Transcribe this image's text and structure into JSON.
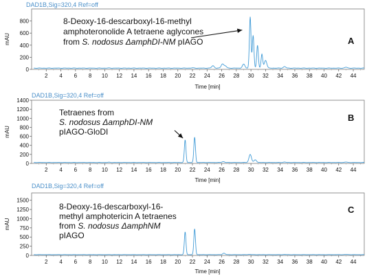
{
  "chart_data": [
    {
      "type": "line",
      "panel_label": "A",
      "header": "DAD1B,Sig=320,4   Ref=off",
      "ylabel": "mAU",
      "xlabel": "Time [min]",
      "xlim": [
        0,
        45.5
      ],
      "x_ticks": [
        "2",
        "4",
        "6",
        "8",
        "10",
        "12",
        "14",
        "16",
        "18",
        "20",
        "22",
        "24",
        "26",
        "28",
        "30",
        "32",
        "34",
        "36",
        "38",
        "40",
        "42",
        "44"
      ],
      "ylim": [
        0,
        1000
      ],
      "y_ticks": [
        "0",
        "200",
        "400",
        "600",
        "800"
      ],
      "annotation": [
        "8-Deoxy-16-descarboxyl-16-methyl",
        "amphoteronolide A tetraene aglycones",
        "from S. nodosus ΔamphDI-NM pIAGO"
      ],
      "arrow_to": {
        "x": 28.8,
        "y": 650
      },
      "baseline": 20,
      "peaks": [
        {
          "x": 10.6,
          "y": 22
        },
        {
          "x": 22.0,
          "y": 25
        },
        {
          "x": 24.8,
          "y": 60
        },
        {
          "x": 26.1,
          "y": 90
        },
        {
          "x": 26.5,
          "y": 55
        },
        {
          "x": 29.0,
          "y": 85
        },
        {
          "x": 29.9,
          "y": 870
        },
        {
          "x": 30.3,
          "y": 560
        },
        {
          "x": 30.9,
          "y": 400
        },
        {
          "x": 31.5,
          "y": 250
        },
        {
          "x": 32.0,
          "y": 150
        },
        {
          "x": 34.6,
          "y": 45
        },
        {
          "x": 43.0,
          "y": 35
        }
      ]
    },
    {
      "type": "line",
      "panel_label": "B",
      "header": "DAD1B,Sig=320,4   Ref=off",
      "ylabel": "mAU",
      "xlabel": "Time [min]",
      "xlim": [
        0,
        45.5
      ],
      "x_ticks": [
        "2",
        "4",
        "6",
        "8",
        "10",
        "12",
        "14",
        "16",
        "18",
        "20",
        "22",
        "24",
        "26",
        "28",
        "30",
        "32",
        "34",
        "36",
        "38",
        "40",
        "42",
        "44"
      ],
      "ylim": [
        0,
        1400
      ],
      "y_ticks": [
        "0",
        "200",
        "400",
        "600",
        "800",
        "1000",
        "1200",
        "1400"
      ],
      "annotation": [
        "Tetraenes from",
        "S. nodosus ΔamphDI-NM",
        "pIAGO-GloDI"
      ],
      "arrow_to": {
        "x": 20.7,
        "y": 560
      },
      "baseline": 20,
      "peaks": [
        {
          "x": 10.6,
          "y": 25
        },
        {
          "x": 21.0,
          "y": 520
        },
        {
          "x": 22.3,
          "y": 580
        },
        {
          "x": 26.2,
          "y": 40
        },
        {
          "x": 29.9,
          "y": 200
        },
        {
          "x": 30.6,
          "y": 80
        },
        {
          "x": 34.6,
          "y": 30
        },
        {
          "x": 43.0,
          "y": 30
        }
      ]
    },
    {
      "type": "line",
      "panel_label": "C",
      "header": "DAD1B,Sig=320,4   Ref=off",
      "ylabel": "mAU",
      "xlabel": "Time [min]",
      "xlim": [
        0,
        45.5
      ],
      "x_ticks": [
        "2",
        "4",
        "6",
        "8",
        "10",
        "12",
        "14",
        "16",
        "18",
        "20",
        "22",
        "24",
        "26",
        "28",
        "30",
        "32",
        "34",
        "36",
        "38",
        "40",
        "42",
        "44"
      ],
      "ylim": [
        0,
        1700
      ],
      "y_ticks": [
        "0",
        "250",
        "500",
        "750",
        "1000",
        "1250",
        "1500"
      ],
      "annotation": [
        "8-Deoxy-16-descarboxyl-16-",
        "methyl amphotericin A tetraenes",
        "from    S.   nodosus    ΔamphNM",
        "pIAGO"
      ],
      "baseline": 20,
      "peaks": [
        {
          "x": 21.0,
          "y": 640
        },
        {
          "x": 22.3,
          "y": 720
        },
        {
          "x": 26.3,
          "y": 60
        },
        {
          "x": 29.8,
          "y": 30
        },
        {
          "x": 34.6,
          "y": 25
        },
        {
          "x": 43.0,
          "y": 25
        }
      ]
    }
  ]
}
